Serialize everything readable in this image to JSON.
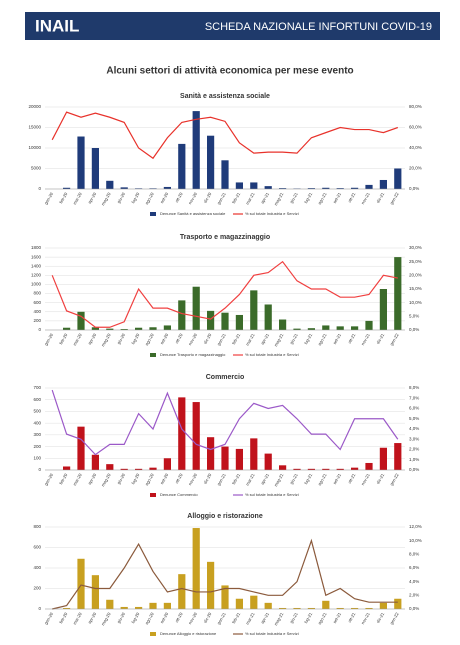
{
  "header": {
    "logo": "INAIL",
    "title": "SCHEDA NAZIONALE INFORTUNI COVID-19"
  },
  "page_title": "Alcuni settori di attività economica per mese evento",
  "chart_data": [
    {
      "type": "combo",
      "title": "Sanità e assistenza sociale",
      "categories": [
        "gen-20",
        "feb-20",
        "mar-20",
        "apr-20",
        "mag-20",
        "giu-20",
        "lug-20",
        "ago-20",
        "set-20",
        "ott-20",
        "nov-20",
        "dic-20",
        "gen-21",
        "feb-21",
        "mar-21",
        "apr-21",
        "mag-21",
        "giu-21",
        "lug-21",
        "ago-21",
        "set-21",
        "ott-21",
        "nov-21",
        "dic-21",
        "gen-22"
      ],
      "series": [
        {
          "name": "Denunce Sanità e assistenza sociale",
          "type": "bar",
          "color": "#1f3b7a",
          "values": [
            0,
            300,
            12800,
            10000,
            2000,
            400,
            150,
            150,
            500,
            11000,
            19000,
            13000,
            7000,
            1600,
            1600,
            700,
            200,
            100,
            200,
            300,
            200,
            300,
            1000,
            2200,
            5000
          ]
        },
        {
          "name": "% sul totale Industria e Servizi",
          "type": "line",
          "axis": "y2",
          "color": "#e8322b",
          "values": [
            48,
            75,
            70,
            74,
            70,
            65,
            40,
            30,
            50,
            65,
            68,
            70,
            66,
            45,
            35,
            36,
            36,
            35,
            50,
            55,
            60,
            58,
            58,
            55,
            60
          ]
        }
      ],
      "ylim": [
        0,
        20000
      ],
      "yticks": [
        0,
        5000,
        10000,
        15000,
        20000
      ],
      "y2lim": [
        0,
        80
      ],
      "y2ticks": [
        {
          "value": 0,
          "label": "0,0%"
        },
        {
          "value": 20,
          "label": "20,0%"
        },
        {
          "value": 40,
          "label": "40,0%"
        },
        {
          "value": 60,
          "label": "60,0%"
        },
        {
          "value": 80,
          "label": "80,0%"
        }
      ],
      "grid": true
    },
    {
      "type": "combo",
      "title": "Trasporto e magazzinaggio",
      "categories": [
        "gen-20",
        "feb-20",
        "mar-20",
        "apr-20",
        "mag-20",
        "giu-20",
        "lug-20",
        "ago-20",
        "set-20",
        "ott-20",
        "nov-20",
        "dic-20",
        "gen-21",
        "feb-21",
        "mar-21",
        "apr-21",
        "mag-21",
        "giu-21",
        "lug-21",
        "ago-21",
        "set-21",
        "ott-21",
        "nov-21",
        "dic-21",
        "gen-22"
      ],
      "series": [
        {
          "name": "Denunce Trasporto e magazzinaggio",
          "type": "bar",
          "color": "#3b6b2a",
          "values": [
            0,
            50,
            400,
            60,
            30,
            20,
            50,
            60,
            100,
            650,
            950,
            420,
            380,
            330,
            870,
            560,
            230,
            30,
            40,
            100,
            80,
            80,
            200,
            900,
            1600
          ]
        },
        {
          "name": "% sul totale Industria e Servizi",
          "type": "line",
          "axis": "y2",
          "color": "#f04040",
          "values": [
            20,
            7,
            5,
            1,
            1,
            3,
            15,
            8,
            8,
            6,
            5,
            4,
            8,
            13,
            20,
            21,
            25,
            18,
            15,
            15,
            12,
            12,
            13,
            20,
            19
          ]
        }
      ],
      "ylim": [
        0,
        1800
      ],
      "yticks": [
        0,
        200,
        400,
        600,
        800,
        1000,
        1200,
        1400,
        1600,
        1800
      ],
      "y2lim": [
        0,
        30
      ],
      "y2ticks": [
        {
          "value": 0,
          "label": "0,0%"
        },
        {
          "value": 5,
          "label": "5,0%"
        },
        {
          "value": 10,
          "label": "10,0%"
        },
        {
          "value": 15,
          "label": "15,0%"
        },
        {
          "value": 20,
          "label": "20,0%"
        },
        {
          "value": 25,
          "label": "25,0%"
        },
        {
          "value": 30,
          "label": "30,0%"
        }
      ],
      "grid": true
    },
    {
      "type": "combo",
      "title": "Commercio",
      "categories": [
        "gen-20",
        "feb-20",
        "mar-20",
        "apr-20",
        "mag-20",
        "giu-20",
        "lug-20",
        "ago-20",
        "set-20",
        "ott-20",
        "nov-20",
        "dic-20",
        "gen-21",
        "feb-21",
        "mar-21",
        "apr-21",
        "mag-21",
        "giu-21",
        "lug-21",
        "ago-21",
        "set-21",
        "ott-21",
        "nov-21",
        "dic-21",
        "gen-22"
      ],
      "series": [
        {
          "name": "Denunce Commercio",
          "type": "bar",
          "color": "#c0121b",
          "values": [
            0,
            30,
            370,
            130,
            50,
            10,
            10,
            20,
            100,
            620,
            580,
            280,
            200,
            180,
            270,
            140,
            40,
            10,
            10,
            10,
            10,
            20,
            60,
            190,
            230
          ]
        },
        {
          "name": "% sul totale Industria e Servizi",
          "type": "line",
          "axis": "y2",
          "color": "#9b59c8",
          "values": [
            7.8,
            3.5,
            3,
            1.5,
            2.5,
            2.5,
            5.5,
            4,
            7.5,
            4,
            2.5,
            2,
            2.5,
            5,
            6.5,
            6,
            6.3,
            5,
            3.5,
            3.5,
            2,
            5,
            5,
            5,
            3
          ]
        }
      ],
      "ylim": [
        0,
        700
      ],
      "yticks": [
        0,
        100,
        200,
        300,
        400,
        500,
        600,
        700
      ],
      "y2lim": [
        0,
        8
      ],
      "y2ticks": [
        {
          "value": 0,
          "label": "0,0%"
        },
        {
          "value": 1,
          "label": "1,0%"
        },
        {
          "value": 2,
          "label": "2,0%"
        },
        {
          "value": 3,
          "label": "3,0%"
        },
        {
          "value": 4,
          "label": "4,0%"
        },
        {
          "value": 5,
          "label": "5,0%"
        },
        {
          "value": 6,
          "label": "6,0%"
        },
        {
          "value": 7,
          "label": "7,0%"
        },
        {
          "value": 8,
          "label": "8,0%"
        }
      ],
      "grid": true
    },
    {
      "type": "combo",
      "title": "Alloggio e ristorazione",
      "categories": [
        "gen-20",
        "feb-20",
        "mar-20",
        "apr-20",
        "mag-20",
        "giu-20",
        "lug-20",
        "ago-20",
        "set-20",
        "ott-20",
        "nov-20",
        "dic-20",
        "gen-21",
        "feb-21",
        "mar-21",
        "apr-21",
        "mag-21",
        "giu-21",
        "lug-21",
        "ago-21",
        "set-21",
        "ott-21",
        "nov-21",
        "dic-21",
        "gen-22"
      ],
      "series": [
        {
          "name": "Denunce Alloggio e ristorazione",
          "type": "bar",
          "color": "#c8a020",
          "values": [
            0,
            10,
            490,
            330,
            90,
            20,
            20,
            60,
            60,
            340,
            790,
            460,
            230,
            100,
            130,
            60,
            10,
            10,
            10,
            80,
            10,
            10,
            10,
            60,
            100
          ]
        },
        {
          "name": "% sul totale Industria e Servizi",
          "type": "line",
          "axis": "y2",
          "color": "#8b5a3c",
          "values": [
            0,
            0.5,
            3.5,
            3,
            3,
            6,
            9.5,
            5.5,
            2.5,
            3,
            2.5,
            2.5,
            3,
            3,
            2.5,
            2,
            2,
            4,
            10,
            2,
            3,
            1.5,
            1,
            1,
            1
          ]
        }
      ],
      "ylim": [
        0,
        800
      ],
      "yticks": [
        0,
        200,
        400,
        600,
        800
      ],
      "y2lim": [
        0,
        12
      ],
      "y2ticks": [
        {
          "value": 0,
          "label": "0,0%"
        },
        {
          "value": 2,
          "label": "2,0%"
        },
        {
          "value": 4,
          "label": "4,0%"
        },
        {
          "value": 6,
          "label": "6,0%"
        },
        {
          "value": 8,
          "label": "8,0%"
        },
        {
          "value": 10,
          "label": "10,0%"
        },
        {
          "value": 12,
          "label": "12,0%"
        }
      ],
      "grid": true
    }
  ]
}
